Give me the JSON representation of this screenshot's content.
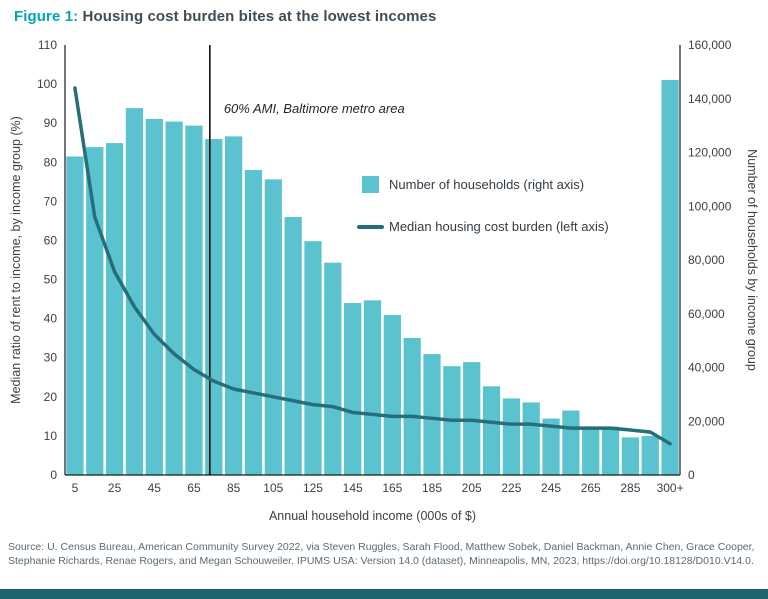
{
  "title": {
    "prefix": "Figure 1:",
    "text": " Housing cost burden bites at the lowest incomes"
  },
  "chart_data": {
    "type": "bar",
    "categories": [
      "5",
      "15",
      "25",
      "35",
      "45",
      "55",
      "65",
      "75",
      "85",
      "95",
      "105",
      "115",
      "125",
      "135",
      "145",
      "155",
      "165",
      "175",
      "185",
      "195",
      "205",
      "215",
      "225",
      "235",
      "245",
      "255",
      "265",
      "275",
      "285",
      "295",
      "300+"
    ],
    "x_tick_every": 2,
    "series": [
      {
        "name": "Number of households (right axis)",
        "type": "bar",
        "axis": "right",
        "values": [
          118500,
          122000,
          123500,
          136500,
          132500,
          131500,
          130000,
          125000,
          126000,
          113500,
          110000,
          96000,
          87000,
          79000,
          64000,
          65000,
          59500,
          51000,
          45000,
          40500,
          42000,
          33000,
          28500,
          27000,
          21000,
          24000,
          18000,
          18000,
          14000,
          14500,
          147000
        ]
      },
      {
        "name": "Median housing cost burden (left axis)",
        "type": "line",
        "axis": "left",
        "values": [
          99,
          66,
          52,
          43,
          36,
          31,
          27,
          24,
          22,
          21,
          20,
          19,
          18,
          17.5,
          16,
          15.5,
          15,
          15,
          14.5,
          14,
          14,
          13.5,
          13,
          13,
          12.5,
          12,
          12,
          12,
          11.5,
          11,
          8
        ]
      }
    ],
    "left_axis": {
      "label": "Median ratio of rent to income, by income group (%)",
      "min": 0,
      "max": 110,
      "tick_step": 10
    },
    "right_axis": {
      "label": "Number of households by income group",
      "min": 0,
      "max": 160000,
      "tick_step": 20000
    },
    "xlabel": "Annual household income (000s of $)",
    "x_domain_max": 310,
    "annotation": {
      "text": "60% AMI, Baltimore metro area",
      "x_value": 73
    },
    "legend_position": "center-right-inside",
    "grid": false,
    "colors": {
      "bar": "#5bc3cf",
      "line": "#256f7a",
      "annotation_line": "#000000"
    }
  },
  "source": "Source: U. Census Bureau, American Community Survey 2022, via Steven Ruggles, Sarah Flood, Matthew Sobek, Daniel Backman, Annie Chen, Grace Cooper, Stephanie Richards, Renae Rogers, and Megan Schouweiler.  IPUMS USA: Version 14.0 (dataset), Minneapolis, MN, 2023, https://doi.org/10.18128/D010.V14.0."
}
